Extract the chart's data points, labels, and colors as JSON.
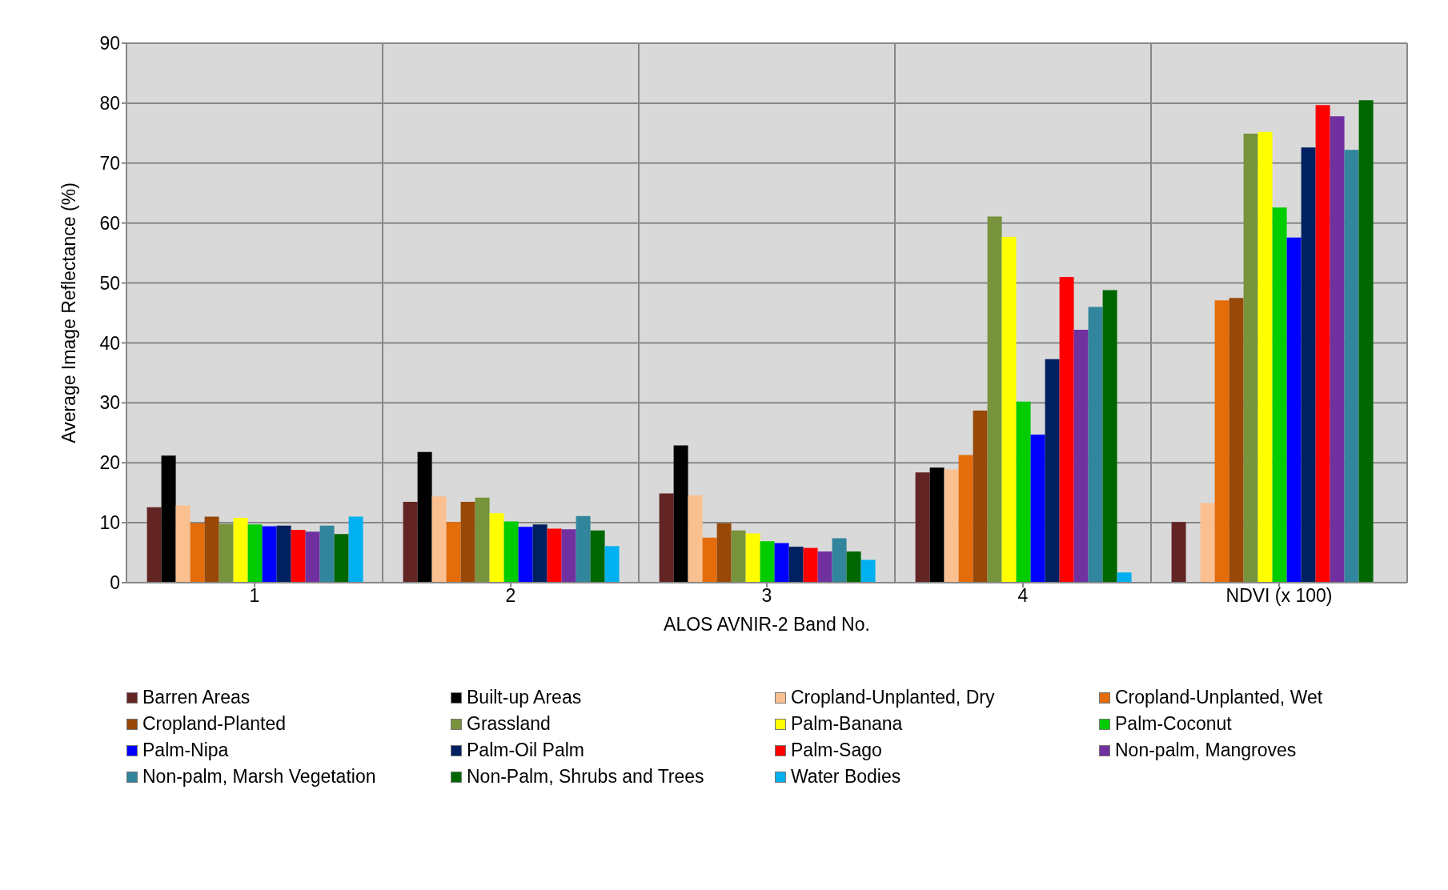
{
  "chart_data": {
    "type": "bar",
    "xlabel": "ALOS AVNIR-2 Band No.",
    "ylabel": "Average Image Reflectance (%)",
    "categories": [
      "1",
      "2",
      "3",
      "4",
      "NDVI (x 100)"
    ],
    "ylim": [
      0,
      90
    ],
    "yticks": [
      0,
      10,
      20,
      30,
      40,
      50,
      60,
      70,
      80,
      90
    ],
    "grid": true,
    "legend": "bottom",
    "series": [
      {
        "name": "Barren Areas",
        "color": "#632523",
        "values": [
          12.6,
          13.5,
          14.9,
          18.4,
          10.1
        ]
      },
      {
        "name": "Built-up Areas",
        "color": "#000000",
        "values": [
          21.2,
          21.8,
          22.9,
          19.2,
          null
        ]
      },
      {
        "name": "Cropland-Unplanted, Dry",
        "color": "#fac090",
        "values": [
          12.9,
          14.4,
          14.6,
          18.9,
          13.3
        ]
      },
      {
        "name": "Cropland-Unplanted, Wet",
        "color": "#e46c0a",
        "values": [
          9.9,
          10.1,
          7.5,
          21.3,
          47.1
        ]
      },
      {
        "name": "Cropland-Planted",
        "color": "#984807",
        "values": [
          11.0,
          13.5,
          9.9,
          28.7,
          47.5
        ]
      },
      {
        "name": "Grassland",
        "color": "#77933c",
        "values": [
          9.8,
          14.2,
          8.7,
          61.1,
          74.9
        ]
      },
      {
        "name": "Palm-Banana",
        "color": "#ffff00",
        "values": [
          10.8,
          11.6,
          8.2,
          57.7,
          75.2
        ]
      },
      {
        "name": "Palm-Coconut",
        "color": "#00cc00",
        "values": [
          9.7,
          10.2,
          6.9,
          30.2,
          62.6
        ]
      },
      {
        "name": "Palm-Nipa",
        "color": "#0000ff",
        "values": [
          9.4,
          9.3,
          6.6,
          24.7,
          57.6
        ]
      },
      {
        "name": "Palm-Oil Palm",
        "color": "#002060",
        "values": [
          9.5,
          9.7,
          6.0,
          37.3,
          72.6
        ]
      },
      {
        "name": "Palm-Sago",
        "color": "#ff0000",
        "values": [
          8.8,
          9.0,
          5.8,
          51.0,
          79.7
        ]
      },
      {
        "name": "Non-palm, Mangroves",
        "color": "#7030a0",
        "values": [
          8.5,
          8.9,
          5.2,
          42.2,
          77.8
        ]
      },
      {
        "name": "Non-palm, Marsh Vegetation",
        "color": "#31859c",
        "values": [
          9.5,
          11.1,
          7.4,
          46.0,
          72.2
        ]
      },
      {
        "name": "Non-Palm, Shrubs and Trees",
        "color": "#006600",
        "values": [
          8.1,
          8.7,
          5.2,
          48.8,
          80.5
        ]
      },
      {
        "name": "Water Bodies",
        "color": "#00b0f0",
        "values": [
          11.0,
          6.1,
          3.8,
          1.7,
          null
        ]
      }
    ]
  }
}
